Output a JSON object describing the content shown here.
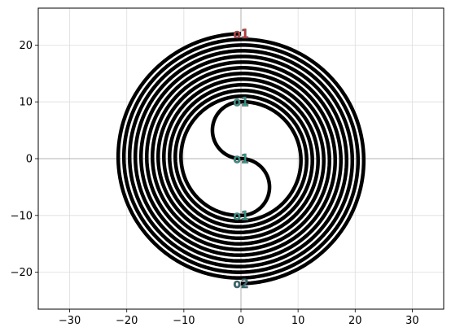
{
  "chart_data": {
    "type": "line",
    "title": "",
    "xlabel": "",
    "ylabel": "",
    "xlim": [
      -35.5,
      35.5
    ],
    "ylim": [
      -26.5,
      26.5
    ],
    "x_ticks": [
      -30,
      -20,
      -10,
      0,
      10,
      20,
      30
    ],
    "x_tick_labels": [
      "−30",
      "−20",
      "−10",
      "0",
      "10",
      "20",
      "30"
    ],
    "y_ticks": [
      -20,
      -10,
      0,
      10,
      20
    ],
    "y_tick_labels": [
      "−20",
      "−10",
      "0",
      "10",
      "20"
    ],
    "grid": true,
    "legend": "none",
    "series": [
      {
        "color": "#000000",
        "description": "double spiral: S-curve through origin (center points (0,5) and (0,-5), radius 5) continuing outward as concentric semicircle turns with radius growing by 1 each half turn, ending at (0,22) and (0,-22)",
        "center_arc_radius": 5,
        "outer_radii": [
          11,
          12,
          13,
          14,
          15,
          16,
          17,
          18,
          19,
          20,
          21,
          22
        ]
      }
    ],
    "points": [
      {
        "label": "o1",
        "x": 0,
        "y": 22,
        "color": "#cc3333"
      },
      {
        "label": "o1",
        "x": 0,
        "y": 10,
        "color": "#2a9d8f"
      },
      {
        "label": "o1",
        "x": 0,
        "y": 0,
        "color": "#2a9d8f"
      },
      {
        "label": "o1",
        "x": 0,
        "y": -10,
        "color": "#2a9d8f"
      },
      {
        "label": "o2",
        "x": 0,
        "y": -22,
        "color": "#2a6f7a"
      }
    ],
    "axis_line_color": "#b0b0b0"
  }
}
